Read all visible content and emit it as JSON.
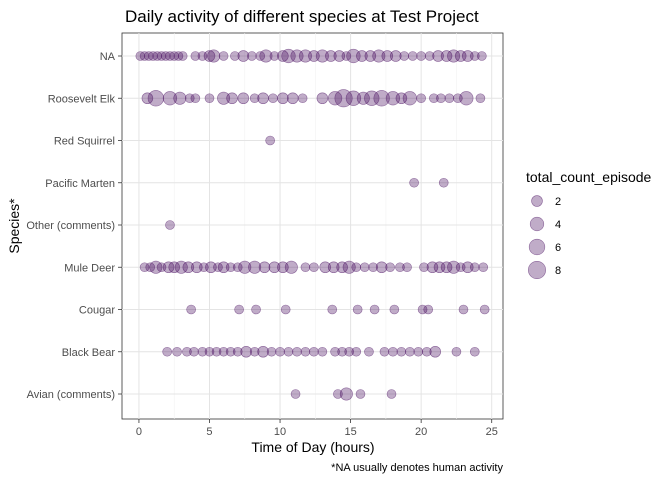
{
  "chart_data": {
    "type": "scatter",
    "title": "Daily activity of different species at Test Project",
    "xlabel": "Time of Day (hours)",
    "ylabel": "Species*",
    "caption": "*NA usually denotes human activity",
    "xlim": [
      -1.2,
      25.8
    ],
    "xticks": [
      0,
      5,
      10,
      15,
      20,
      25
    ],
    "xtick_labels": [
      "0",
      "5",
      "10",
      "15",
      "20",
      "25"
    ],
    "categories": [
      "NA",
      "Roosevelt Elk",
      "Red Squirrel",
      "Pacific Marten",
      "Other (comments)",
      "Mule Deer",
      "Cougar",
      "Black Bear",
      "Avian (comments)"
    ],
    "grid": true,
    "point_color": "#4b1162",
    "point_opacity": 0.35,
    "legend": {
      "title": "total_count_episode",
      "placement": "right",
      "sizes": [
        2,
        4,
        6,
        8
      ],
      "labels": [
        "2",
        "4",
        "6",
        "8"
      ]
    },
    "series": [
      {
        "name": "NA",
        "points": [
          {
            "x": 0.1,
            "size": 1
          },
          {
            "x": 0.4,
            "size": 1
          },
          {
            "x": 0.7,
            "size": 1
          },
          {
            "x": 1.0,
            "size": 1
          },
          {
            "x": 1.3,
            "size": 1
          },
          {
            "x": 1.6,
            "size": 1
          },
          {
            "x": 1.9,
            "size": 1
          },
          {
            "x": 2.2,
            "size": 1
          },
          {
            "x": 2.5,
            "size": 1
          },
          {
            "x": 2.8,
            "size": 1
          },
          {
            "x": 3.1,
            "size": 1
          },
          {
            "x": 4.0,
            "size": 1
          },
          {
            "x": 4.5,
            "size": 1
          },
          {
            "x": 5.0,
            "size": 2
          },
          {
            "x": 5.3,
            "size": 3
          },
          {
            "x": 6.0,
            "size": 1
          },
          {
            "x": 6.8,
            "size": 1
          },
          {
            "x": 7.4,
            "size": 2
          },
          {
            "x": 8.0,
            "size": 1
          },
          {
            "x": 8.6,
            "size": 1
          },
          {
            "x": 9.0,
            "size": 3
          },
          {
            "x": 9.6,
            "size": 1
          },
          {
            "x": 10.2,
            "size": 2
          },
          {
            "x": 10.6,
            "size": 4
          },
          {
            "x": 11.2,
            "size": 3
          },
          {
            "x": 11.8,
            "size": 3
          },
          {
            "x": 12.4,
            "size": 2
          },
          {
            "x": 13.0,
            "size": 3
          },
          {
            "x": 13.6,
            "size": 2
          },
          {
            "x": 14.2,
            "size": 2
          },
          {
            "x": 14.7,
            "size": 1
          },
          {
            "x": 15.2,
            "size": 4
          },
          {
            "x": 15.8,
            "size": 2
          },
          {
            "x": 16.4,
            "size": 2
          },
          {
            "x": 17.0,
            "size": 3
          },
          {
            "x": 17.6,
            "size": 2
          },
          {
            "x": 18.2,
            "size": 2
          },
          {
            "x": 18.8,
            "size": 1
          },
          {
            "x": 19.4,
            "size": 1
          },
          {
            "x": 20.0,
            "size": 1
          },
          {
            "x": 20.6,
            "size": 1
          },
          {
            "x": 21.2,
            "size": 2
          },
          {
            "x": 21.8,
            "size": 2
          },
          {
            "x": 22.3,
            "size": 3
          },
          {
            "x": 22.8,
            "size": 2
          },
          {
            "x": 23.3,
            "size": 2
          },
          {
            "x": 23.8,
            "size": 1
          },
          {
            "x": 24.3,
            "size": 1
          }
        ]
      },
      {
        "name": "Roosevelt Elk",
        "points": [
          {
            "x": 0.6,
            "size": 2
          },
          {
            "x": 1.2,
            "size": 6
          },
          {
            "x": 2.2,
            "size": 4
          },
          {
            "x": 2.9,
            "size": 3
          },
          {
            "x": 3.6,
            "size": 1
          },
          {
            "x": 4.0,
            "size": 1
          },
          {
            "x": 5.0,
            "size": 1
          },
          {
            "x": 6.0,
            "size": 3
          },
          {
            "x": 6.6,
            "size": 2
          },
          {
            "x": 7.4,
            "size": 2
          },
          {
            "x": 8.2,
            "size": 1
          },
          {
            "x": 8.8,
            "size": 2
          },
          {
            "x": 9.5,
            "size": 1
          },
          {
            "x": 10.2,
            "size": 2
          },
          {
            "x": 10.9,
            "size": 2
          },
          {
            "x": 11.6,
            "size": 1
          },
          {
            "x": 13.0,
            "size": 2
          },
          {
            "x": 13.9,
            "size": 4
          },
          {
            "x": 14.5,
            "size": 8
          },
          {
            "x": 15.2,
            "size": 5
          },
          {
            "x": 15.9,
            "size": 3
          },
          {
            "x": 16.5,
            "size": 5
          },
          {
            "x": 17.2,
            "size": 6
          },
          {
            "x": 18.0,
            "size": 4
          },
          {
            "x": 18.6,
            "size": 2
          },
          {
            "x": 19.2,
            "size": 4
          },
          {
            "x": 20.0,
            "size": 1
          },
          {
            "x": 20.9,
            "size": 1
          },
          {
            "x": 21.4,
            "size": 1
          },
          {
            "x": 22.0,
            "size": 1
          },
          {
            "x": 22.6,
            "size": 1
          },
          {
            "x": 23.2,
            "size": 4
          },
          {
            "x": 24.2,
            "size": 1
          }
        ]
      },
      {
        "name": "Red Squirrel",
        "points": [
          {
            "x": 9.3,
            "size": 1
          }
        ]
      },
      {
        "name": "Pacific Marten",
        "points": [
          {
            "x": 19.5,
            "size": 1
          },
          {
            "x": 21.6,
            "size": 1
          }
        ]
      },
      {
        "name": "Other (comments)",
        "points": [
          {
            "x": 2.2,
            "size": 1
          }
        ]
      },
      {
        "name": "Mule Deer",
        "points": [
          {
            "x": 0.4,
            "size": 1
          },
          {
            "x": 0.8,
            "size": 1
          },
          {
            "x": 1.2,
            "size": 3
          },
          {
            "x": 1.6,
            "size": 1
          },
          {
            "x": 2.1,
            "size": 2
          },
          {
            "x": 2.5,
            "size": 2
          },
          {
            "x": 3.0,
            "size": 3
          },
          {
            "x": 3.5,
            "size": 2
          },
          {
            "x": 4.1,
            "size": 2
          },
          {
            "x": 4.6,
            "size": 1
          },
          {
            "x": 5.1,
            "size": 2
          },
          {
            "x": 5.6,
            "size": 1
          },
          {
            "x": 6.0,
            "size": 2
          },
          {
            "x": 6.5,
            "size": 1
          },
          {
            "x": 7.0,
            "size": 1
          },
          {
            "x": 7.5,
            "size": 3
          },
          {
            "x": 8.2,
            "size": 3
          },
          {
            "x": 8.9,
            "size": 2
          },
          {
            "x": 9.6,
            "size": 2
          },
          {
            "x": 10.2,
            "size": 2
          },
          {
            "x": 10.8,
            "size": 3
          },
          {
            "x": 11.8,
            "size": 1
          },
          {
            "x": 12.4,
            "size": 1
          },
          {
            "x": 13.2,
            "size": 2
          },
          {
            "x": 13.8,
            "size": 2
          },
          {
            "x": 14.4,
            "size": 2
          },
          {
            "x": 14.9,
            "size": 3
          },
          {
            "x": 15.4,
            "size": 1
          },
          {
            "x": 16.0,
            "size": 1
          },
          {
            "x": 16.6,
            "size": 1
          },
          {
            "x": 17.2,
            "size": 2
          },
          {
            "x": 17.8,
            "size": 1
          },
          {
            "x": 18.5,
            "size": 1
          },
          {
            "x": 19.0,
            "size": 1
          },
          {
            "x": 20.2,
            "size": 1
          },
          {
            "x": 20.8,
            "size": 2
          },
          {
            "x": 21.3,
            "size": 2
          },
          {
            "x": 21.8,
            "size": 2
          },
          {
            "x": 22.3,
            "size": 3
          },
          {
            "x": 22.8,
            "size": 1
          },
          {
            "x": 23.3,
            "size": 2
          },
          {
            "x": 23.8,
            "size": 1
          },
          {
            "x": 24.4,
            "size": 1
          }
        ]
      },
      {
        "name": "Cougar",
        "points": [
          {
            "x": 3.7,
            "size": 1
          },
          {
            "x": 7.1,
            "size": 1
          },
          {
            "x": 8.3,
            "size": 1
          },
          {
            "x": 10.4,
            "size": 1
          },
          {
            "x": 13.7,
            "size": 1
          },
          {
            "x": 15.5,
            "size": 1
          },
          {
            "x": 16.7,
            "size": 1
          },
          {
            "x": 18.1,
            "size": 1
          },
          {
            "x": 20.1,
            "size": 1
          },
          {
            "x": 20.5,
            "size": 1
          },
          {
            "x": 23.0,
            "size": 1
          },
          {
            "x": 24.5,
            "size": 1
          }
        ]
      },
      {
        "name": "Black Bear",
        "points": [
          {
            "x": 2.0,
            "size": 1
          },
          {
            "x": 2.7,
            "size": 1
          },
          {
            "x": 3.4,
            "size": 1
          },
          {
            "x": 3.9,
            "size": 1
          },
          {
            "x": 4.5,
            "size": 1
          },
          {
            "x": 5.0,
            "size": 1
          },
          {
            "x": 5.5,
            "size": 1
          },
          {
            "x": 6.0,
            "size": 1
          },
          {
            "x": 6.5,
            "size": 1
          },
          {
            "x": 7.0,
            "size": 1
          },
          {
            "x": 7.6,
            "size": 2
          },
          {
            "x": 8.2,
            "size": 1
          },
          {
            "x": 8.8,
            "size": 2
          },
          {
            "x": 9.4,
            "size": 1
          },
          {
            "x": 10.0,
            "size": 1
          },
          {
            "x": 10.6,
            "size": 1
          },
          {
            "x": 11.2,
            "size": 1
          },
          {
            "x": 11.8,
            "size": 1
          },
          {
            "x": 12.4,
            "size": 1
          },
          {
            "x": 13.0,
            "size": 1
          },
          {
            "x": 13.9,
            "size": 1
          },
          {
            "x": 14.4,
            "size": 1
          },
          {
            "x": 14.9,
            "size": 1
          },
          {
            "x": 15.4,
            "size": 1
          },
          {
            "x": 16.3,
            "size": 1
          },
          {
            "x": 17.4,
            "size": 1
          },
          {
            "x": 18.0,
            "size": 1
          },
          {
            "x": 18.6,
            "size": 1
          },
          {
            "x": 19.2,
            "size": 1
          },
          {
            "x": 19.8,
            "size": 1
          },
          {
            "x": 20.4,
            "size": 1
          },
          {
            "x": 21.0,
            "size": 2
          },
          {
            "x": 22.5,
            "size": 1
          },
          {
            "x": 23.8,
            "size": 1
          }
        ]
      },
      {
        "name": "Avian (comments)",
        "points": [
          {
            "x": 11.1,
            "size": 1
          },
          {
            "x": 14.1,
            "size": 1
          },
          {
            "x": 14.7,
            "size": 3
          },
          {
            "x": 15.7,
            "size": 1
          },
          {
            "x": 17.9,
            "size": 1
          }
        ]
      }
    ]
  }
}
